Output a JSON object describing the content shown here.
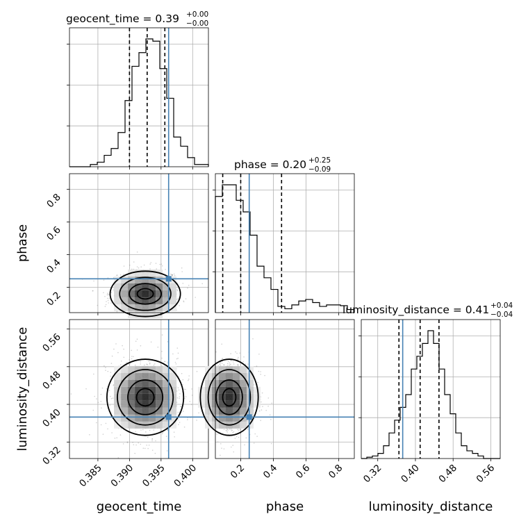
{
  "chart_data": {
    "type": "corner",
    "parameters": [
      "geocent_time",
      "phase",
      "luminosity_distance"
    ],
    "labels": {
      "geocent_time": "geocent_time",
      "phase": "phase",
      "luminosity_distance": "luminosity_distance"
    },
    "ranges": {
      "geocent_time": [
        0.3805,
        0.4025
      ],
      "phase": [
        0.045,
        0.895
      ],
      "luminosity_distance": [
        0.285,
        0.58
      ]
    },
    "ticks": {
      "geocent_time": [
        {
          "v": 0.385,
          "label": "0.385"
        },
        {
          "v": 0.39,
          "label": "0.390"
        },
        {
          "v": 0.395,
          "label": "0.395"
        },
        {
          "v": 0.4,
          "label": "0.400"
        }
      ],
      "phase": [
        {
          "v": 0.2,
          "label": "0.2"
        },
        {
          "v": 0.4,
          "label": "0.4"
        },
        {
          "v": 0.6,
          "label": "0.6"
        },
        {
          "v": 0.8,
          "label": "0.8"
        }
      ],
      "luminosity_distance": [
        {
          "v": 0.32,
          "label": "0.32"
        },
        {
          "v": 0.4,
          "label": "0.40"
        },
        {
          "v": 0.48,
          "label": "0.48"
        },
        {
          "v": 0.56,
          "label": "0.56"
        }
      ]
    },
    "truths": {
      "geocent_time": 0.3962,
      "phase": 0.252,
      "luminosity_distance": 0.373
    },
    "quantiles": {
      "geocent_time": [
        0.39,
        0.3928,
        0.3956
      ],
      "phase": [
        0.09,
        0.2,
        0.45
      ],
      "luminosity_distance": [
        0.365,
        0.41,
        0.45
      ]
    },
    "titles": {
      "geocent_time": {
        "main": "geocent_time = 0.39",
        "plus": "+0.00",
        "minus": "−0.00"
      },
      "phase": {
        "main": "phase = 0.20",
        "plus": "+0.25",
        "minus": "−0.09"
      },
      "luminosity_distance": {
        "main": "luminosity_distance = 0.41",
        "plus": "+0.04",
        "minus": "−0.04"
      }
    },
    "histograms": {
      "geocent_time": {
        "edges_start": 0.3805,
        "bin_width": 0.0011,
        "counts": [
          0,
          0,
          0,
          1,
          2,
          5,
          8,
          15,
          29,
          44,
          50,
          56,
          55,
          43,
          30,
          13,
          9,
          4,
          1,
          1
        ]
      },
      "phase": {
        "edges_start": 0.045,
        "bin_width": 0.0425,
        "counts": [
          150,
          165,
          165,
          145,
          130,
          100,
          60,
          45,
          30,
          8,
          5,
          10,
          15,
          17,
          13,
          8,
          10,
          10,
          9,
          4
        ]
      },
      "luminosity_distance": {
        "edges_start": 0.285,
        "bin_width": 0.0118,
        "counts": [
          0,
          1,
          2,
          4,
          10,
          20,
          30,
          40,
          50,
          70,
          80,
          90,
          100,
          90,
          70,
          50,
          35,
          20,
          10,
          6,
          4,
          2,
          0,
          0,
          0
        ]
      }
    },
    "density_2d": {
      "geocent_time__phase": {
        "center": [
          0.3925,
          0.16
        ],
        "spread": [
          0.0022,
          0.06
        ]
      },
      "geocent_time__luminosity_distance": {
        "center": [
          0.3925,
          0.415
        ],
        "spread": [
          0.0024,
          0.035
        ]
      },
      "phase__luminosity_distance": {
        "center": [
          0.13,
          0.415
        ],
        "spread": [
          0.07,
          0.035
        ]
      }
    }
  }
}
